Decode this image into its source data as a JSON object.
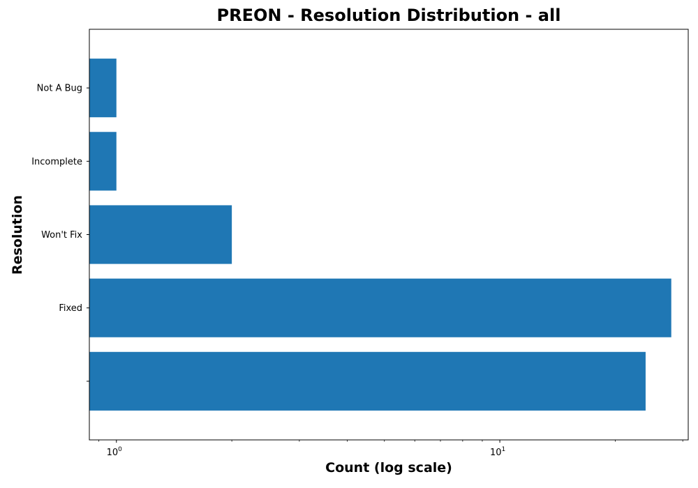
{
  "chart_data": {
    "type": "bar",
    "orientation": "horizontal",
    "title": "PREON - Resolution Distribution - all",
    "xlabel": "Count (log scale)",
    "ylabel": "Resolution",
    "x_scale": "log",
    "xlim": [
      0.85,
      31
    ],
    "categories": [
      "",
      "Fixed",
      "Won't Fix",
      "Incomplete",
      "Not A Bug"
    ],
    "values": [
      24,
      28,
      2,
      1,
      1
    ],
    "bar_color": "#1f77b4",
    "x_tick_labels": [
      {
        "value": 1,
        "base": "10",
        "exp": "0"
      },
      {
        "value": 10,
        "base": "10",
        "exp": "1"
      }
    ],
    "grid": false,
    "legend": "none"
  }
}
